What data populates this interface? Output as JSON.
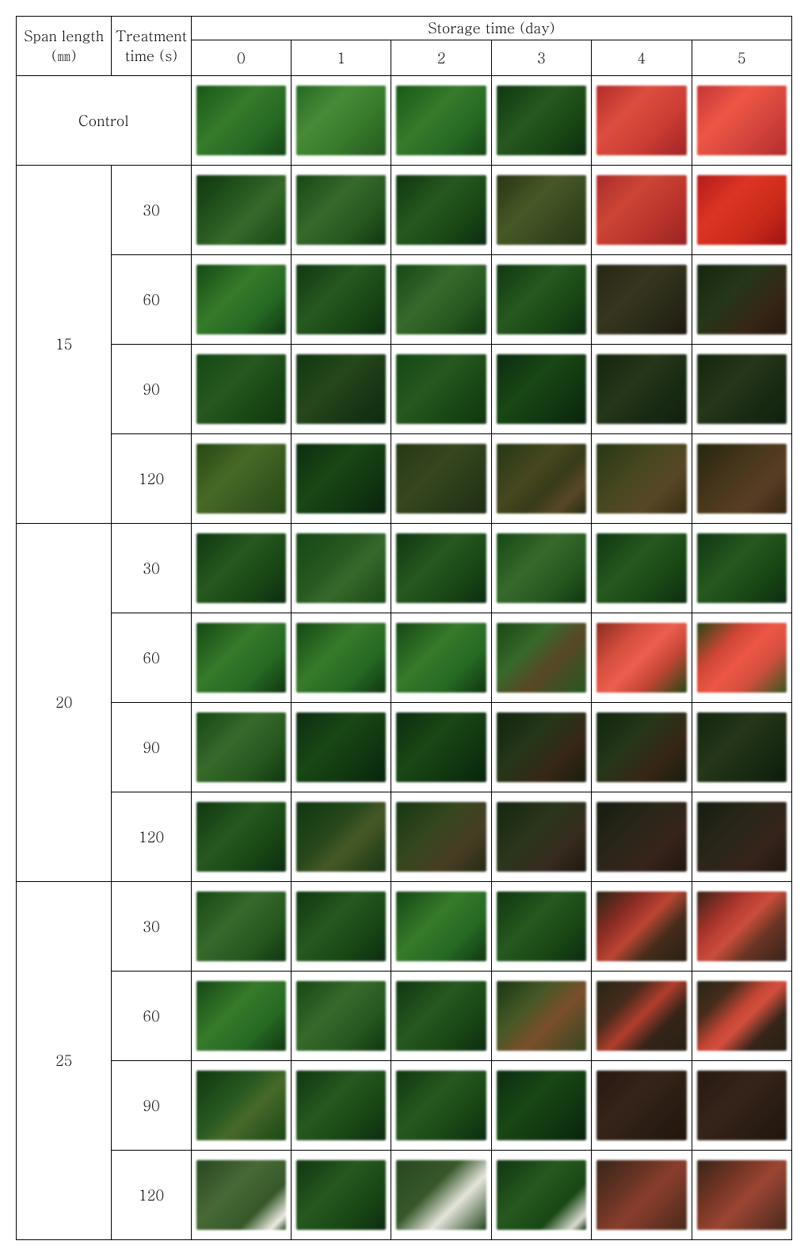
{
  "headers": {
    "span_length": "Span length (㎜)",
    "treatment_time": "Treatment time (s)",
    "storage_time": "Storage time (day)",
    "days": [
      "0",
      "1",
      "2",
      "3",
      "4",
      "5"
    ],
    "control": "Control"
  },
  "span_lengths": [
    "15",
    "20",
    "25"
  ],
  "treatment_times": [
    "30",
    "60",
    "90",
    "120"
  ],
  "cells": {
    "control": [
      {
        "bg": "linear-gradient(135deg,#1e5a1e 0%,#3a7a2e 40%,#2a6a28 70%,#1a4a1a 100%)"
      },
      {
        "bg": "linear-gradient(135deg,#2a6a28 0%,#4a8a3a 35%,#3a7a2e 65%,#2a5a24 100%)"
      },
      {
        "bg": "linear-gradient(135deg,#1e5a1e 0%,#3a7a2e 40%,#2a6a28 70%,#1a4a1a 100%)"
      },
      {
        "bg": "linear-gradient(135deg,#163a16 0%,#2a5a24 40%,#1e4a1a 70%,#123016 100%)"
      },
      {
        "bg": "linear-gradient(135deg,#b03030 0%,#d85040 35%,#c84038 65%,#a02828 100%)"
      },
      {
        "bg": "linear-gradient(135deg,#c03838 0%,#e85848 35%,#d04840 65%,#b03030 100%)"
      }
    ],
    "l15": {
      "30": [
        {
          "bg": "linear-gradient(135deg,#163a16 0%,#2a5a24 40%,#3a6a2e 60%,#1a4a1a 100%)"
        },
        {
          "bg": "linear-gradient(135deg,#1a4a1a 0%,#3a6a2e 40%,#2a5a24 70%,#163a16 100%)"
        },
        {
          "bg": "linear-gradient(135deg,#163a16 0%,#2a5a24 40%,#1e4a1a 70%,#123016 100%)"
        },
        {
          "bg": "linear-gradient(135deg,#2a3a1a 0%,#4a5a2a 40%,#3a4a24 70%,#2a3a1a 100%)"
        },
        {
          "bg": "linear-gradient(135deg,#a83030 0%,#c84838 35%,#b83830 65%,#982828 100%)"
        },
        {
          "bg": "linear-gradient(135deg,#b02020 0%,#d83828 35%,#c83020 65%,#a01818 100%)"
        }
      ],
      "60": [
        {
          "bg": "linear-gradient(135deg,#1a4a1a 0%,#3a7a2e 40%,#2a6a28 70%,#163a16 100%)"
        },
        {
          "bg": "linear-gradient(135deg,#163a16 0%,#2a5a24 40%,#1e4a1a 70%,#123016 100%)"
        },
        {
          "bg": "linear-gradient(135deg,#1a4a1a 0%,#3a6a2e 40%,#2a5a24 70%,#163a16 100%)"
        },
        {
          "bg": "linear-gradient(135deg,#163a16 0%,#2a5a24 40%,#1e4a1a 70%,#123016 100%)"
        },
        {
          "bg": "linear-gradient(135deg,#2a2a1a 0%,#3a3a24 40%,#2e2e1e 70%,#241e16 100%)"
        },
        {
          "bg": "linear-gradient(135deg,#1a2a14 0%,#2a3a1e 40%,#3a2a1a 70%,#2a1e14 100%)"
        }
      ],
      "90": [
        {
          "bg": "linear-gradient(135deg,#1a4a1a 0%,#2a5a24 40%,#1e4a1a 70%,#163a16 100%)"
        },
        {
          "bg": "linear-gradient(135deg,#163a16 0%,#2a4a20 40%,#1e3a1a 70%,#123016 100%)"
        },
        {
          "bg": "linear-gradient(135deg,#1a4a1a 0%,#2a5a24 40%,#1e4a1a 70%,#163a16 100%)"
        },
        {
          "bg": "linear-gradient(135deg,#123016 0%,#1e4a1a 40%,#163a16 70%,#0e2812 100%)"
        },
        {
          "bg": "linear-gradient(135deg,#1a2a14 0%,#2a3a1e 40%,#1e2e18 70%,#162414 100%)"
        },
        {
          "bg": "linear-gradient(135deg,#1a2a14 0%,#2a3a1e 40%,#1e2e18 70%,#162414 100%)"
        }
      ],
      "120": [
        {
          "bg": "linear-gradient(135deg,#2a4a1a 0%,#4a6a2a 40%,#3a5a24 70%,#2a4a1a 100%)"
        },
        {
          "bg": "linear-gradient(135deg,#123016 0%,#1e4a1a 40%,#163a16 70%,#0e2812 100%)"
        },
        {
          "bg": "linear-gradient(135deg,#2a3a1a 0%,#3a4a24 40%,#2e3e1e 70%,#243018 100%)"
        },
        {
          "bg": "linear-gradient(135deg,#2a3a1a 0%,#4a4a24 40%,#3a3e1e 60%,#5a4a2a 80%,#2a3018 100%)"
        },
        {
          "bg": "linear-gradient(135deg,#2a3a1a 0%,#4a4a24 40%,#5a4a2a 70%,#3a3018 100%)"
        },
        {
          "bg": "linear-gradient(135deg,#2a2a16 0%,#4a3a20 40%,#5a4028 70%,#3a2a18 100%)"
        }
      ]
    },
    "l20": {
      "30": [
        {
          "bg": "linear-gradient(135deg,#163a16 0%,#2a5a24 40%,#1e4a1a 70%,#123016 100%)"
        },
        {
          "bg": "linear-gradient(135deg,#1a4a1a 0%,#2a5a24 40%,#3a6a2e 60%,#1e4a1a 100%)"
        },
        {
          "bg": "linear-gradient(135deg,#163a16 0%,#2a5a24 40%,#1e4a1a 70%,#123016 100%)"
        },
        {
          "bg": "linear-gradient(135deg,#1a4a1a 0%,#3a6a2e 40%,#2a5a24 70%,#163a16 100%)"
        },
        {
          "bg": "linear-gradient(135deg,#163a16 0%,#2a5a24 40%,#1e4a1a 70%,#123016 100%)"
        },
        {
          "bg": "linear-gradient(135deg,#163a16 0%,#2a5a24 40%,#1e4a1a 70%,#123016 100%)"
        }
      ],
      "60": [
        {
          "bg": "linear-gradient(135deg,#1a4a1a 0%,#3a7a2e 40%,#2a6a28 70%,#163a16 100%)"
        },
        {
          "bg": "linear-gradient(135deg,#1a4a1a 0%,#3a7a2e 40%,#2a6a28 70%,#163a16 100%)"
        },
        {
          "bg": "linear-gradient(135deg,#1a4a1a 0%,#3a7a2e 40%,#2a6a28 70%,#163a16 100%)"
        },
        {
          "bg": "linear-gradient(135deg,#1e4a1a 0%,#3a6a2e 35%,#5a4a2a 60%,#2a5a24 100%)"
        },
        {
          "bg": "linear-gradient(135deg,#8a3024 0%,#d05040 30%,#e86050 50%,#c04838 70%,#2a4a1a 100%)"
        },
        {
          "bg": "linear-gradient(135deg,#2a4a1a 0%,#c84838 30%,#e85848 50%,#d05040 70%,#3a5a24 100%)"
        }
      ],
      "90": [
        {
          "bg": "linear-gradient(135deg,#1a4a1a 0%,#3a6a2e 40%,#2a5a24 70%,#163a16 100%)"
        },
        {
          "bg": "linear-gradient(135deg,#123016 0%,#1e4a1a 40%,#163a16 70%,#0e2812 100%)"
        },
        {
          "bg": "linear-gradient(135deg,#123016 0%,#1e4a1a 40%,#163a16 70%,#0e2812 100%)"
        },
        {
          "bg": "linear-gradient(135deg,#162a14 0%,#2a3a1e 40%,#3a2a1a 70%,#1e2214 100%)"
        },
        {
          "bg": "linear-gradient(135deg,#162a14 0%,#2a3a1e 40%,#3a2a1a 70%,#1e2214 100%)"
        },
        {
          "bg": "linear-gradient(135deg,#162a14 0%,#2a3a1e 40%,#1e2e18 70%,#122010 100%)"
        }
      ],
      "120": [
        {
          "bg": "linear-gradient(135deg,#163a16 0%,#2a5a24 40%,#1e4a1a 70%,#123016 100%)"
        },
        {
          "bg": "linear-gradient(135deg,#163a16 0%,#2a4a20 40%,#4a5a2a 60%,#1e3a1a 100%)"
        },
        {
          "bg": "linear-gradient(135deg,#1a3a18 0%,#3a4a24 40%,#4a4028 70%,#2a3018 100%)"
        },
        {
          "bg": "linear-gradient(135deg,#1a2a16 0%,#2e3a20 40%,#3a3024 70%,#241e16 100%)"
        },
        {
          "bg": "linear-gradient(135deg,#1a2216 0%,#2e2a1e 40%,#3a2820 70%,#241c14 100%)"
        },
        {
          "bg": "linear-gradient(135deg,#1a2216 0%,#2e2a1e 40%,#3a2820 70%,#241c14 100%)"
        }
      ]
    },
    "l25": {
      "30": [
        {
          "bg": "linear-gradient(135deg,#1a4a1a 0%,#3a6a2e 40%,#2a5a24 70%,#163a16 100%)"
        },
        {
          "bg": "linear-gradient(135deg,#163a16 0%,#2a5a24 40%,#1e4a1a 70%,#123016 100%)"
        },
        {
          "bg": "linear-gradient(135deg,#1a4a1a 0%,#3a7a2e 40%,#2a6a28 70%,#163a16 100%)"
        },
        {
          "bg": "linear-gradient(135deg,#163a16 0%,#2a5a24 40%,#1e4a1a 70%,#123016 100%)"
        },
        {
          "bg": "linear-gradient(135deg,#2a2a1a 0%,#8a3028 30%,#b84838 50%,#4a3020 70%,#2a241a 100%)"
        },
        {
          "bg": "linear-gradient(135deg,#3a281e 0%,#a83830 30%,#c85040 50%,#6a3828 70%,#3a281e 100%)"
        }
      ],
      "60": [
        {
          "bg": "linear-gradient(135deg,#1a4a1a 0%,#3a7a2e 40%,#2a6a28 70%,#163a16 100%)"
        },
        {
          "bg": "linear-gradient(135deg,#1a4a1a 0%,#3a6a2e 40%,#2a5a24 70%,#163a16 100%)"
        },
        {
          "bg": "linear-gradient(135deg,#163a16 0%,#2a5a24 40%,#1e4a1a 70%,#123016 100%)"
        },
        {
          "bg": "linear-gradient(135deg,#1e3a1a 0%,#4a5a2a 35%,#7a5030 60%,#3a4a24 100%)"
        },
        {
          "bg": "linear-gradient(135deg,#2a2a1a 0%,#4a3020 30%,#b04030 50%,#3a281e 70%,#2a2418 100%)"
        },
        {
          "bg": "linear-gradient(135deg,#2a2a1a 0%,#4a3020 25%,#c04838 45%,#d05040 55%,#3a281e 75%,#2a2418 100%)"
        }
      ],
      "90": [
        {
          "bg": "linear-gradient(135deg,#163a16 0%,#2a5a24 40%,#4a6a2e 60%,#1e4a1a 100%)"
        },
        {
          "bg": "linear-gradient(135deg,#163a16 0%,#2a5a24 40%,#1e4a1a 70%,#123016 100%)"
        },
        {
          "bg": "linear-gradient(135deg,#163a16 0%,#2a5a24 40%,#1e4a1a 70%,#123016 100%)"
        },
        {
          "bg": "linear-gradient(135deg,#123016 0%,#1e4a1a 40%,#163a16 70%,#0e2812 100%)"
        },
        {
          "bg": "linear-gradient(135deg,#2a1e16 0%,#3a281e 40%,#2e2218 70%,#241a12 100%)"
        },
        {
          "bg": "linear-gradient(135deg,#2a1e16 0%,#3a281e 40%,#2e2218 70%,#241a12 100%)"
        }
      ],
      "120": [
        {
          "bg": "linear-gradient(135deg,#2a4a24 0%,#4a6a3a 40%,#3a5a2e 70%,#e8e8e0 90%,#2a4a24 100%)"
        },
        {
          "bg": "linear-gradient(135deg,#163a16 0%,#2a5a24 40%,#1e4a1a 70%,#123016 100%)"
        },
        {
          "bg": "linear-gradient(135deg,#2a4a24 0%,#3a5a2e 40%,#e0e0d8 65%,#2a4a24 100%)"
        },
        {
          "bg": "linear-gradient(135deg,#163a16 0%,#2a5a24 40%,#1e4a1a 70%,#d8d8d0 90%,#123016 100%)"
        },
        {
          "bg": "linear-gradient(135deg,#3a2a1e 0%,#6a3828 35%,#8a4030 55%,#4a2e20 100%)"
        },
        {
          "bg": "linear-gradient(135deg,#3a2a1e 0%,#7a3a2a 35%,#9a4838 55%,#4a2e20 100%)"
        }
      ]
    }
  }
}
